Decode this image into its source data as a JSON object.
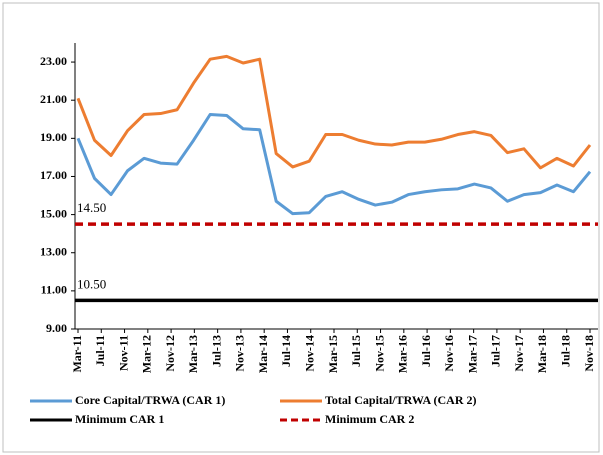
{
  "chart_data": {
    "type": "line",
    "xticklabels": [
      "Mar-11",
      "Jul-11",
      "Nov-11",
      "Mar-12",
      "Nov-12",
      "Mar-13",
      "Jul-13",
      "Nov-13",
      "Mar-14",
      "Jul-14",
      "Nov-14",
      "Mar-15",
      "Jul-15",
      "Nov-15",
      "Mar-16",
      "Jul-16",
      "Nov-16",
      "Mar-17",
      "Jul-17",
      "Nov-17",
      "Mar-18",
      "Jul-18",
      "Nov-18"
    ],
    "series": [
      {
        "name": "Core Capital/TRWA (CAR 1)",
        "color": "#5b9bd5",
        "values": [
          19.0,
          16.9,
          16.05,
          17.3,
          17.95,
          17.7,
          17.65,
          18.9,
          20.25,
          20.2,
          19.5,
          19.45,
          15.7,
          15.05,
          15.1,
          15.95,
          16.2,
          15.8,
          15.5,
          15.65,
          16.05,
          16.2,
          16.3,
          16.35,
          16.6,
          16.4,
          15.7,
          16.05,
          16.15,
          16.55,
          16.2,
          17.25
        ]
      },
      {
        "name": "Total Capital/TRWA (CAR 2)",
        "color": "#ed7d31",
        "values": [
          21.1,
          18.9,
          18.1,
          19.4,
          20.25,
          20.3,
          20.5,
          21.9,
          23.15,
          23.3,
          22.95,
          23.15,
          18.2,
          17.5,
          17.8,
          19.2,
          19.2,
          18.9,
          18.7,
          18.65,
          18.8,
          18.8,
          18.95,
          19.2,
          19.35,
          19.15,
          18.25,
          18.45,
          17.45,
          17.95,
          17.55,
          18.65
        ]
      }
    ],
    "reference_lines": [
      {
        "name": "Minimum CAR 1",
        "value": 10.5,
        "label": "10.50",
        "color": "#000000",
        "dash": false
      },
      {
        "name": "Minimum CAR 2",
        "value": 14.5,
        "label": "14.50",
        "color": "#c00000",
        "dash": true
      }
    ],
    "ylim": [
      9,
      24
    ],
    "yticks": [
      {
        "value": 9,
        "label": "9.00"
      },
      {
        "value": 11,
        "label": "11.00"
      },
      {
        "value": 13,
        "label": "13.00"
      },
      {
        "value": 15,
        "label": "15.00"
      },
      {
        "value": 17,
        "label": "17.00"
      },
      {
        "value": 19,
        "label": "19.00"
      },
      {
        "value": 21,
        "label": "21.00"
      },
      {
        "value": 23,
        "label": "23.00"
      }
    ]
  }
}
